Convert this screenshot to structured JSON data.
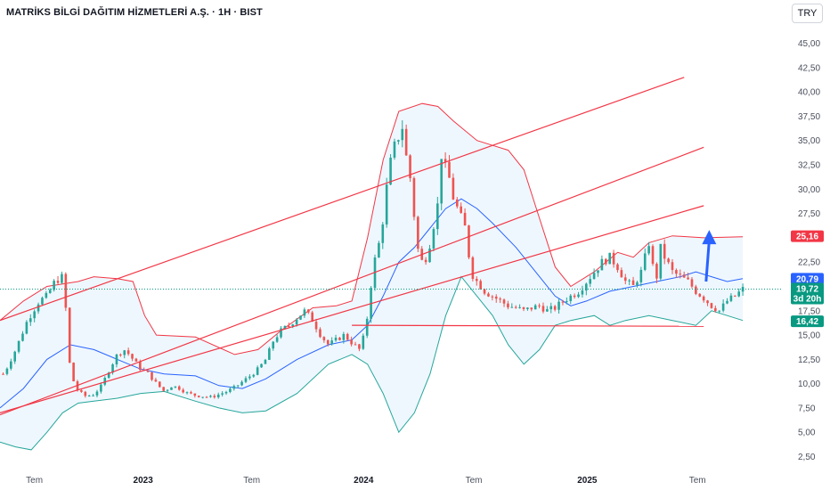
{
  "header": {
    "title": "MATRİKS BİLGİ DAĞITIM HİZMETLERİ A.Ş. · 1H · BIST",
    "currency": "TRY"
  },
  "colors": {
    "up": "#26a69a",
    "down": "#ef5350",
    "channel": "#f23645",
    "bb_upper": "#f23645",
    "bb_lower": "#26a69a",
    "bb_middle": "#2962ff",
    "bb_fill": "#e3f2fd",
    "arrow": "#2962ff",
    "last_price": "#089981"
  },
  "chart_data": {
    "type": "candlestick",
    "y_axis_position": "right",
    "y_ticks": [
      "2,50",
      "5,00",
      "7,50",
      "10,00",
      "12,50",
      "15,00",
      "17,50",
      "20,00",
      "22,50",
      "25,00",
      "27,50",
      "30,00",
      "32,50",
      "35,00",
      "37,50",
      "40,00",
      "42,50",
      "45,00"
    ],
    "y_range": [
      0.9,
      46.7
    ],
    "x_ticks": [
      {
        "label": "Tem",
        "pos": 0.044,
        "year": false
      },
      {
        "label": "2023",
        "pos": 0.183,
        "year": true
      },
      {
        "label": "Tem",
        "pos": 0.322,
        "year": false
      },
      {
        "label": "2024",
        "pos": 0.465,
        "year": true
      },
      {
        "label": "Tem",
        "pos": 0.606,
        "year": false
      },
      {
        "label": "2025",
        "pos": 0.751,
        "year": true
      },
      {
        "label": "Tem",
        "pos": 0.892,
        "year": false
      }
    ],
    "x_range": [
      0,
      1
    ],
    "close_series": [
      [
        0.005,
        11.0
      ],
      [
        0.02,
        13.5
      ],
      [
        0.035,
        16.5
      ],
      [
        0.05,
        18.5
      ],
      [
        0.06,
        19.0
      ],
      [
        0.07,
        20.5
      ],
      [
        0.08,
        21.0
      ],
      [
        0.085,
        17.0
      ],
      [
        0.09,
        11.0
      ],
      [
        0.1,
        9.2
      ],
      [
        0.11,
        8.7
      ],
      [
        0.12,
        8.9
      ],
      [
        0.13,
        9.8
      ],
      [
        0.14,
        11.5
      ],
      [
        0.15,
        13.0
      ],
      [
        0.16,
        13.5
      ],
      [
        0.17,
        12.5
      ],
      [
        0.18,
        11.5
      ],
      [
        0.19,
        11.0
      ],
      [
        0.2,
        10.0
      ],
      [
        0.21,
        9.2
      ],
      [
        0.22,
        9.8
      ],
      [
        0.23,
        9.5
      ],
      [
        0.24,
        9.0
      ],
      [
        0.25,
        8.8
      ],
      [
        0.26,
        8.7
      ],
      [
        0.27,
        8.6
      ],
      [
        0.28,
        8.9
      ],
      [
        0.29,
        9.2
      ],
      [
        0.3,
        9.6
      ],
      [
        0.31,
        10.2
      ],
      [
        0.32,
        10.8
      ],
      [
        0.33,
        11.5
      ],
      [
        0.34,
        12.5
      ],
      [
        0.35,
        14.5
      ],
      [
        0.36,
        15.5
      ],
      [
        0.37,
        16.0
      ],
      [
        0.38,
        16.8
      ],
      [
        0.39,
        17.5
      ],
      [
        0.4,
        16.5
      ],
      [
        0.41,
        15.0
      ],
      [
        0.42,
        14.0
      ],
      [
        0.43,
        14.5
      ],
      [
        0.44,
        15.0
      ],
      [
        0.45,
        14.2
      ],
      [
        0.46,
        13.5
      ],
      [
        0.465,
        14.8
      ],
      [
        0.47,
        17.0
      ],
      [
        0.475,
        20.5
      ],
      [
        0.48,
        23.0
      ],
      [
        0.485,
        24.5
      ],
      [
        0.49,
        27.0
      ],
      [
        0.495,
        30.5
      ],
      [
        0.5,
        33.0
      ],
      [
        0.505,
        34.5
      ],
      [
        0.51,
        35.5
      ],
      [
        0.515,
        36.5
      ],
      [
        0.52,
        33.0
      ],
      [
        0.525,
        31.0
      ],
      [
        0.53,
        27.0
      ],
      [
        0.535,
        23.5
      ],
      [
        0.54,
        22.5
      ],
      [
        0.545,
        23.0
      ],
      [
        0.55,
        24.5
      ],
      [
        0.555,
        26.5
      ],
      [
        0.56,
        28.5
      ],
      [
        0.565,
        34.0
      ],
      [
        0.57,
        32.0
      ],
      [
        0.575,
        31.0
      ],
      [
        0.58,
        29.0
      ],
      [
        0.585,
        28.0
      ],
      [
        0.59,
        27.0
      ],
      [
        0.595,
        26.0
      ],
      [
        0.6,
        23.0
      ],
      [
        0.605,
        21.0
      ],
      [
        0.61,
        20.5
      ],
      [
        0.62,
        19.5
      ],
      [
        0.63,
        19.0
      ],
      [
        0.64,
        18.5
      ],
      [
        0.65,
        18.0
      ],
      [
        0.66,
        17.8
      ],
      [
        0.67,
        17.5
      ],
      [
        0.68,
        17.8
      ],
      [
        0.69,
        18.0
      ],
      [
        0.7,
        17.5
      ],
      [
        0.71,
        17.8
      ],
      [
        0.72,
        18.5
      ],
      [
        0.73,
        19.0
      ],
      [
        0.74,
        19.5
      ],
      [
        0.75,
        20.5
      ],
      [
        0.76,
        21.5
      ],
      [
        0.77,
        22.5
      ],
      [
        0.78,
        23.0
      ],
      [
        0.79,
        22.0
      ],
      [
        0.8,
        20.5
      ],
      [
        0.81,
        20.0
      ],
      [
        0.82,
        21.5
      ],
      [
        0.83,
        24.5
      ],
      [
        0.835,
        22.0
      ],
      [
        0.84,
        21.0
      ],
      [
        0.845,
        24.0
      ],
      [
        0.85,
        23.0
      ],
      [
        0.86,
        21.5
      ],
      [
        0.87,
        21.0
      ],
      [
        0.88,
        20.5
      ],
      [
        0.89,
        19.5
      ],
      [
        0.9,
        18.8
      ],
      [
        0.91,
        18.0
      ],
      [
        0.92,
        17.5
      ],
      [
        0.93,
        18.5
      ],
      [
        0.94,
        19.0
      ],
      [
        0.95,
        19.72
      ]
    ],
    "bollinger": {
      "upper": [
        [
          0.0,
          16.5
        ],
        [
          0.03,
          18.5
        ],
        [
          0.06,
          20.0
        ],
        [
          0.1,
          20.5
        ],
        [
          0.12,
          21.0
        ],
        [
          0.15,
          20.8
        ],
        [
          0.17,
          20.5
        ],
        [
          0.185,
          17.0
        ],
        [
          0.2,
          15.0
        ],
        [
          0.25,
          14.8
        ],
        [
          0.3,
          13.0
        ],
        [
          0.33,
          13.5
        ],
        [
          0.36,
          15.5
        ],
        [
          0.4,
          17.8
        ],
        [
          0.43,
          18.0
        ],
        [
          0.45,
          18.5
        ],
        [
          0.47,
          25.0
        ],
        [
          0.49,
          33.0
        ],
        [
          0.51,
          38.0
        ],
        [
          0.54,
          38.8
        ],
        [
          0.56,
          38.5
        ],
        [
          0.58,
          37.0
        ],
        [
          0.61,
          35.0
        ],
        [
          0.63,
          34.5
        ],
        [
          0.65,
          34.0
        ],
        [
          0.67,
          32.0
        ],
        [
          0.69,
          27.0
        ],
        [
          0.71,
          22.0
        ],
        [
          0.73,
          20.0
        ],
        [
          0.76,
          21.5
        ],
        [
          0.79,
          23.5
        ],
        [
          0.81,
          23.0
        ],
        [
          0.83,
          24.5
        ],
        [
          0.86,
          25.2
        ],
        [
          0.9,
          25.0
        ],
        [
          0.95,
          25.1
        ]
      ],
      "middle": [
        [
          0.0,
          7.5
        ],
        [
          0.03,
          9.5
        ],
        [
          0.06,
          12.5
        ],
        [
          0.09,
          14.0
        ],
        [
          0.12,
          13.5
        ],
        [
          0.15,
          12.5
        ],
        [
          0.18,
          11.5
        ],
        [
          0.21,
          11.0
        ],
        [
          0.25,
          10.8
        ],
        [
          0.28,
          9.8
        ],
        [
          0.31,
          9.5
        ],
        [
          0.34,
          10.5
        ],
        [
          0.38,
          12.5
        ],
        [
          0.42,
          14.0
        ],
        [
          0.45,
          14.5
        ],
        [
          0.47,
          16.0
        ],
        [
          0.49,
          19.0
        ],
        [
          0.51,
          22.5
        ],
        [
          0.53,
          24.0
        ],
        [
          0.55,
          26.0
        ],
        [
          0.57,
          28.0
        ],
        [
          0.59,
          29.0
        ],
        [
          0.61,
          28.0
        ],
        [
          0.63,
          26.5
        ],
        [
          0.66,
          24.0
        ],
        [
          0.69,
          21.0
        ],
        [
          0.71,
          19.0
        ],
        [
          0.73,
          18.0
        ],
        [
          0.75,
          18.5
        ],
        [
          0.78,
          19.5
        ],
        [
          0.81,
          20.0
        ],
        [
          0.84,
          20.5
        ],
        [
          0.87,
          21.0
        ],
        [
          0.89,
          21.5
        ],
        [
          0.91,
          21.0
        ],
        [
          0.93,
          20.5
        ],
        [
          0.95,
          20.8
        ]
      ],
      "lower": [
        [
          0.0,
          4.0
        ],
        [
          0.02,
          3.5
        ],
        [
          0.04,
          3.2
        ],
        [
          0.06,
          5.0
        ],
        [
          0.08,
          7.0
        ],
        [
          0.1,
          8.0
        ],
        [
          0.12,
          8.2
        ],
        [
          0.15,
          8.5
        ],
        [
          0.18,
          9.0
        ],
        [
          0.21,
          9.2
        ],
        [
          0.25,
          8.2
        ],
        [
          0.28,
          7.5
        ],
        [
          0.31,
          7.0
        ],
        [
          0.34,
          7.2
        ],
        [
          0.38,
          9.0
        ],
        [
          0.42,
          12.0
        ],
        [
          0.45,
          13.0
        ],
        [
          0.47,
          12.0
        ],
        [
          0.49,
          9.0
        ],
        [
          0.51,
          5.0
        ],
        [
          0.53,
          7.0
        ],
        [
          0.55,
          11.0
        ],
        [
          0.57,
          17.0
        ],
        [
          0.59,
          21.0
        ],
        [
          0.61,
          19.0
        ],
        [
          0.63,
          17.0
        ],
        [
          0.65,
          14.0
        ],
        [
          0.67,
          12.0
        ],
        [
          0.69,
          13.5
        ],
        [
          0.71,
          16.0
        ],
        [
          0.73,
          16.5
        ],
        [
          0.76,
          17.0
        ],
        [
          0.78,
          16.0
        ],
        [
          0.8,
          16.5
        ],
        [
          0.83,
          17.0
        ],
        [
          0.86,
          16.5
        ],
        [
          0.89,
          16.0
        ],
        [
          0.91,
          17.5
        ],
        [
          0.93,
          17.0
        ],
        [
          0.95,
          16.5
        ]
      ]
    },
    "channel_lines": [
      {
        "from": [
          0.0,
          16.5
        ],
        "to": [
          0.875,
          41.5
        ]
      },
      {
        "from": [
          0.0,
          6.8
        ],
        "to": [
          0.9,
          34.3
        ]
      },
      {
        "from": [
          0.0,
          7.0
        ],
        "to": [
          0.9,
          28.3
        ]
      }
    ],
    "support_line": {
      "from": [
        0.45,
        16.0
      ],
      "to": [
        0.9,
        15.9
      ]
    },
    "arrow": {
      "from": [
        0.903,
        20.5
      ],
      "to": [
        0.907,
        25.8
      ]
    },
    "last_price": 19.72,
    "price_badges": [
      {
        "value": "25,16",
        "price": 25.16,
        "color": "#f23645"
      },
      {
        "value": "20,79",
        "price": 20.79,
        "color": "#2962ff"
      },
      {
        "value": "19,72",
        "price": 19.72,
        "color": "#089981",
        "sub": "3d 20h"
      },
      {
        "value": "16,42",
        "price": 16.42,
        "color": "#089981"
      }
    ]
  }
}
